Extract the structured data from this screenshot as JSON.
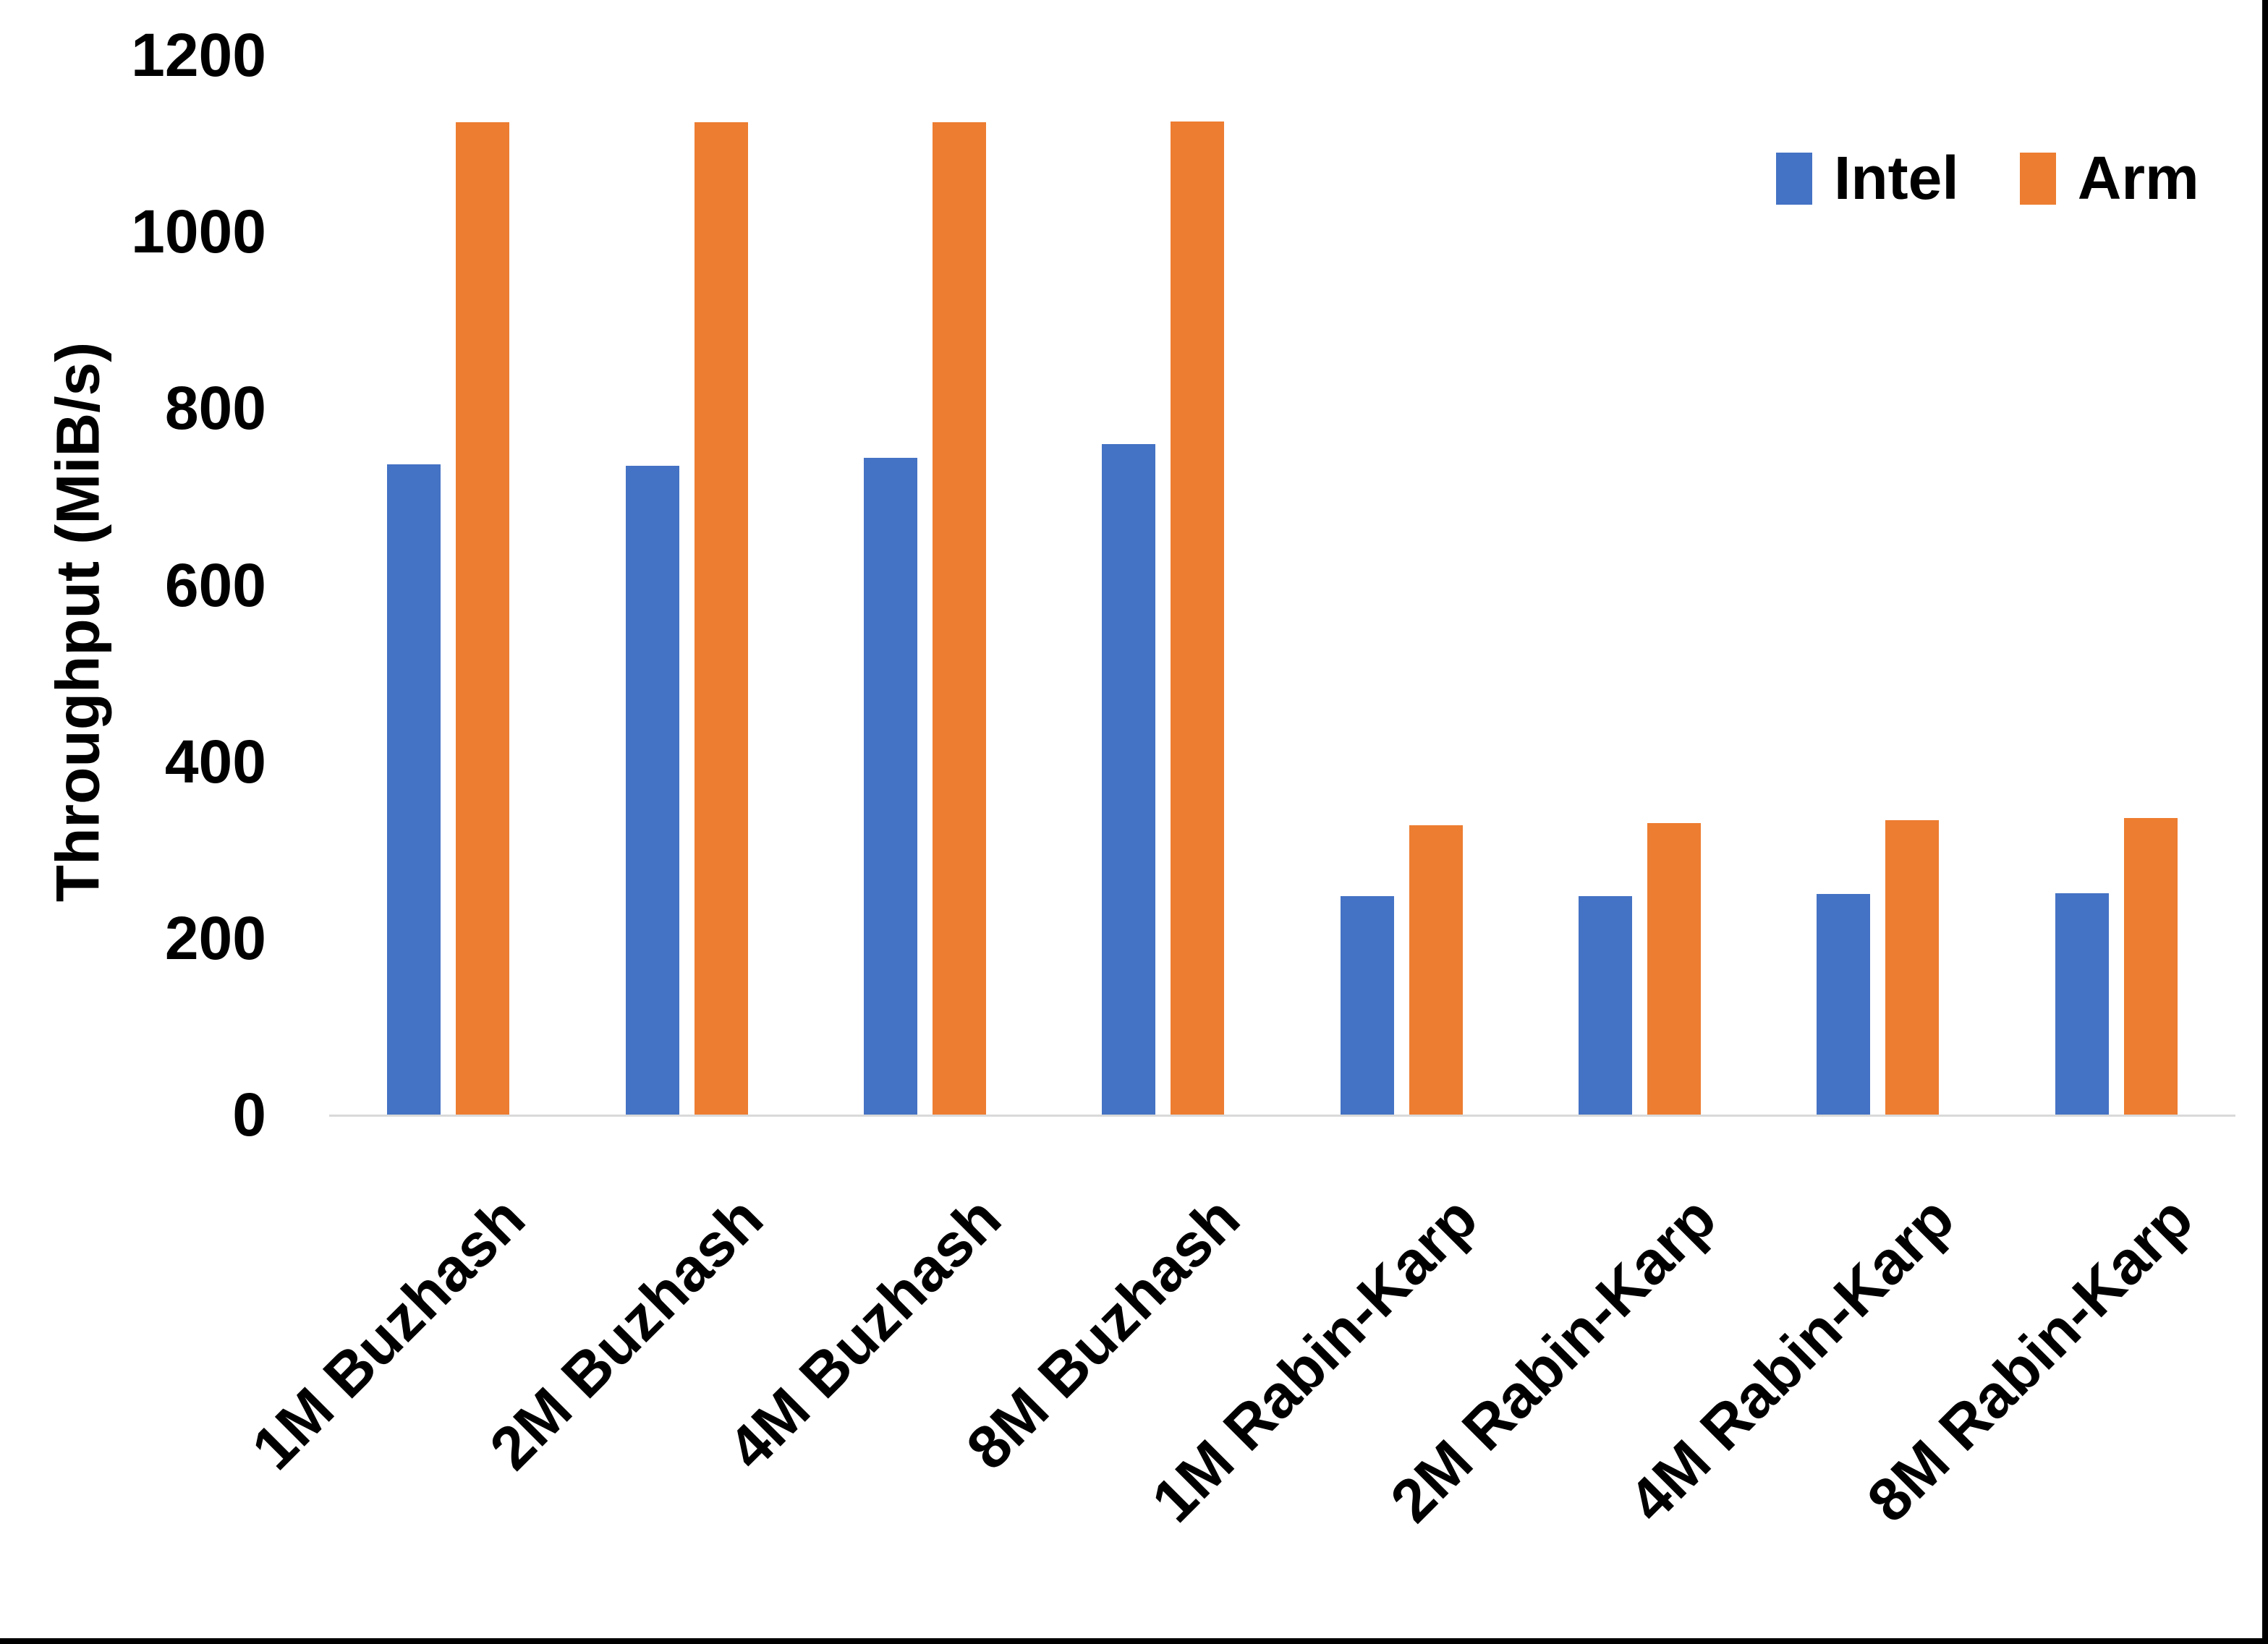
{
  "chart_data": {
    "type": "bar",
    "title": "",
    "xlabel": "",
    "ylabel": "Throughput (MiB/s)",
    "ylim": [
      0,
      1200
    ],
    "ytick_interval": 200,
    "yticks": [
      0,
      200,
      400,
      600,
      800,
      1000,
      1200
    ],
    "grid": false,
    "legend_position": "top-right",
    "categories": [
      "1M Buzhash",
      "2M Buzhash",
      "4M Buzhash",
      "8M Buzhash",
      "1M Rabin-Karp",
      "2M Rabin-Karp",
      "4M Rabin-Karp",
      "8M Rabin-Karp"
    ],
    "series": [
      {
        "name": "Intel",
        "color": "#4472C4",
        "values": [
          736,
          735,
          744,
          759,
          247,
          247,
          250,
          251
        ]
      },
      {
        "name": "Arm",
        "color": "#ED7D31",
        "values": [
          1124,
          1124,
          1124,
          1125,
          328,
          330,
          333,
          336
        ]
      }
    ]
  },
  "colors": {
    "background": "#FFFFFF",
    "axis_line": "#D9D9D9",
    "text": "#000000",
    "edge_border": "#000000"
  }
}
